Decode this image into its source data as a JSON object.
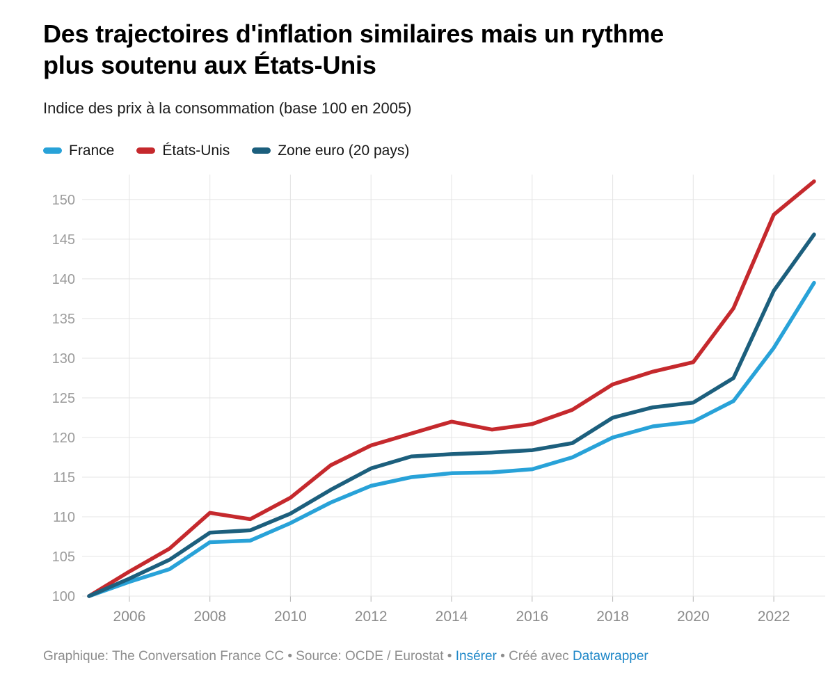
{
  "header": {
    "title": "Des trajectoires d'inflation similaires mais un rythme\nplus soutenu aux États-Unis",
    "subtitle": "Indice des prix à la consommation (base 100 en 2005)"
  },
  "chart_data": {
    "type": "line",
    "title": "Des trajectoires d'inflation similaires mais un rythme plus soutenu aux États-Unis",
    "subtitle": "Indice des prix à la consommation (base 100 en 2005)",
    "x": [
      2005,
      2006,
      2007,
      2008,
      2009,
      2010,
      2011,
      2012,
      2013,
      2014,
      2015,
      2016,
      2017,
      2018,
      2019,
      2020,
      2021,
      2022,
      2023
    ],
    "series": [
      {
        "name": "France",
        "color": "#28a2d8",
        "values": [
          100,
          101.8,
          103.4,
          106.8,
          107.0,
          109.2,
          111.8,
          113.9,
          115.0,
          115.5,
          115.6,
          116.0,
          117.5,
          120.0,
          121.4,
          122.0,
          124.6,
          131.3,
          139.5
        ]
      },
      {
        "name": "États-Unis",
        "color": "#c5292d",
        "values": [
          100,
          103.1,
          106.0,
          110.5,
          109.7,
          112.4,
          116.5,
          119.0,
          120.5,
          122.0,
          121.0,
          121.7,
          123.5,
          126.7,
          128.3,
          129.5,
          136.3,
          148.1,
          152.3
        ]
      },
      {
        "name": "Zone euro (20 pays)",
        "color": "#1c5f7d",
        "values": [
          100,
          102.2,
          104.6,
          108.0,
          108.3,
          110.4,
          113.4,
          116.1,
          117.6,
          117.9,
          118.1,
          118.4,
          119.3,
          122.5,
          123.8,
          124.4,
          127.5,
          138.5,
          145.6
        ]
      }
    ],
    "y_ticks": [
      100,
      105,
      110,
      115,
      120,
      125,
      130,
      135,
      140,
      145,
      150
    ],
    "x_tick_labels": [
      "2006",
      "2008",
      "2010",
      "2012",
      "2014",
      "2016",
      "2018",
      "2020",
      "2022"
    ],
    "ylim": [
      100,
      152.8
    ],
    "grid": true,
    "legend_position": "top",
    "axis_label_color": "#9b9b9b",
    "grid_color": "#e4e4e4",
    "tick_color": "#b3b3b3"
  },
  "footer": {
    "credit": "Graphique: The Conversation France CC • Source: OCDE / Eurostat • ",
    "embed_link": "Insérer",
    "middle": "  • Créé avec ",
    "tool_link": "Datawrapper",
    "link_color": "#1e87c8"
  }
}
